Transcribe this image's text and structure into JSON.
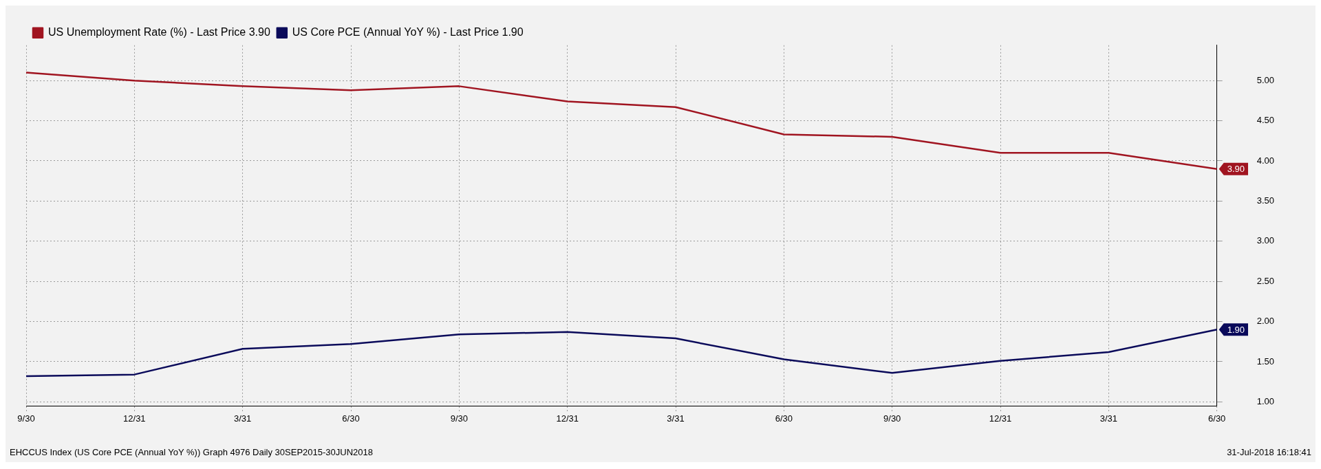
{
  "chart_data": {
    "type": "line",
    "categories": [
      "9/30",
      "12/31",
      "3/31",
      "6/30",
      "9/30",
      "12/31",
      "3/31",
      "6/30",
      "9/30",
      "12/31",
      "3/31",
      "6/30"
    ],
    "series": [
      {
        "name": "US Unemployment Rate (%) - Last Price 3.90",
        "color": "#a01420",
        "values": [
          5.1,
          5.0,
          4.93,
          4.88,
          4.93,
          4.74,
          4.67,
          4.33,
          4.3,
          4.1,
          4.1,
          3.9
        ],
        "value_labels": [
          null,
          null,
          null,
          null,
          null,
          null,
          null,
          null,
          null,
          null,
          null,
          "3.90"
        ]
      },
      {
        "name": "US Core PCE (Annual YoY %) - Last Price 1.90",
        "color": "#0a0a5a",
        "values": [
          1.32,
          1.34,
          1.66,
          1.72,
          1.84,
          1.87,
          1.79,
          1.53,
          1.36,
          1.51,
          1.62,
          1.9
        ],
        "value_labels": [
          null,
          null,
          null,
          null,
          null,
          null,
          null,
          null,
          null,
          null,
          null,
          "1.90"
        ]
      }
    ],
    "ylim": [
      0.95,
      5.44
    ],
    "yticks": [
      {
        "value": 1,
        "label": "1.00"
      },
      {
        "value": 1.5,
        "label": "1.50"
      },
      {
        "value": 2,
        "label": "2.00"
      },
      {
        "value": 2.5,
        "label": "2.50"
      },
      {
        "value": 3,
        "label": "3.00"
      },
      {
        "value": 3.5,
        "label": "3.50"
      },
      {
        "value": 4,
        "label": "4.00"
      },
      {
        "value": 4.5,
        "label": "4.50"
      },
      {
        "value": 5,
        "label": "5.00"
      }
    ],
    "grid": true,
    "legend": "top left",
    "marker": "none",
    "line_style": "solid",
    "annotations": [
      "EHCCUS Index (US Core PCE (Annual YoY %)) Graph 4976 Daily 30SEP2015-30JUN2018",
      "31-Jul-2018 16:18:41"
    ]
  }
}
